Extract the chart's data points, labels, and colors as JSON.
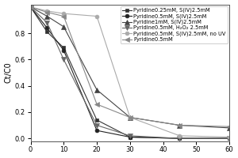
{
  "title": "",
  "xlabel": "",
  "ylabel": "Ct/C0",
  "xlim": [
    0,
    60
  ],
  "ylim": [
    -0.02,
    1.02
  ],
  "yticks": [
    0.0,
    0.2,
    0.4,
    0.6,
    0.8
  ],
  "xticks": [
    0,
    10,
    20,
    30,
    40,
    50,
    60
  ],
  "series": [
    {
      "label": "Pyridine0.25mM, S(IV)2.5mM",
      "x": [
        0,
        5,
        10,
        20,
        30,
        45,
        60
      ],
      "y": [
        1.0,
        0.81,
        0.69,
        0.14,
        0.01,
        0.0,
        0.0
      ],
      "color": "#333333",
      "marker": "s",
      "markersize": 3.5,
      "linestyle": "-"
    },
    {
      "label": "Pyridine0.5mM, S(IV)2.5mM",
      "x": [
        0,
        5,
        10,
        20,
        30,
        45,
        60
      ],
      "y": [
        1.0,
        0.84,
        0.67,
        0.06,
        0.01,
        0.0,
        0.0
      ],
      "color": "#222222",
      "marker": "o",
      "markersize": 3.5,
      "linestyle": "-"
    },
    {
      "label": "Pyridine1mM, S(IV)2.5mM",
      "x": [
        0,
        5,
        10,
        20,
        30,
        45,
        60
      ],
      "y": [
        1.0,
        0.93,
        0.85,
        0.37,
        0.16,
        0.1,
        0.08
      ],
      "color": "#444444",
      "marker": "^",
      "markersize": 4.5,
      "linestyle": "-"
    },
    {
      "label": "Pyridine0.5mM, H₂O₂ 2.5mM",
      "x": [
        0,
        5,
        10,
        20,
        30,
        45,
        60
      ],
      "y": [
        1.0,
        0.88,
        0.6,
        0.1,
        0.02,
        0.0,
        0.0
      ],
      "color": "#666666",
      "marker": "v",
      "markersize": 4.5,
      "linestyle": "-"
    },
    {
      "label": "Pyridine0.5mM, S(IV)2.5mM, no UV",
      "x": [
        0,
        5,
        10,
        20,
        30,
        45,
        60
      ],
      "y": [
        1.0,
        0.97,
        0.95,
        0.93,
        0.16,
        0.02,
        0.01
      ],
      "color": "#aaaaaa",
      "marker": "o",
      "markersize": 3.5,
      "linestyle": "-"
    },
    {
      "label": "Pyridine0.5mM",
      "x": [
        0,
        5,
        10,
        20,
        30,
        45,
        60
      ],
      "y": [
        1.0,
        0.96,
        0.93,
        0.26,
        0.16,
        0.1,
        0.09
      ],
      "color": "#888888",
      "marker": "<",
      "markersize": 4.5,
      "linestyle": "-"
    }
  ],
  "background_color": "#ffffff",
  "legend_fontsize": 4.8,
  "axis_fontsize": 7,
  "tick_fontsize": 6,
  "linewidth": 0.8
}
